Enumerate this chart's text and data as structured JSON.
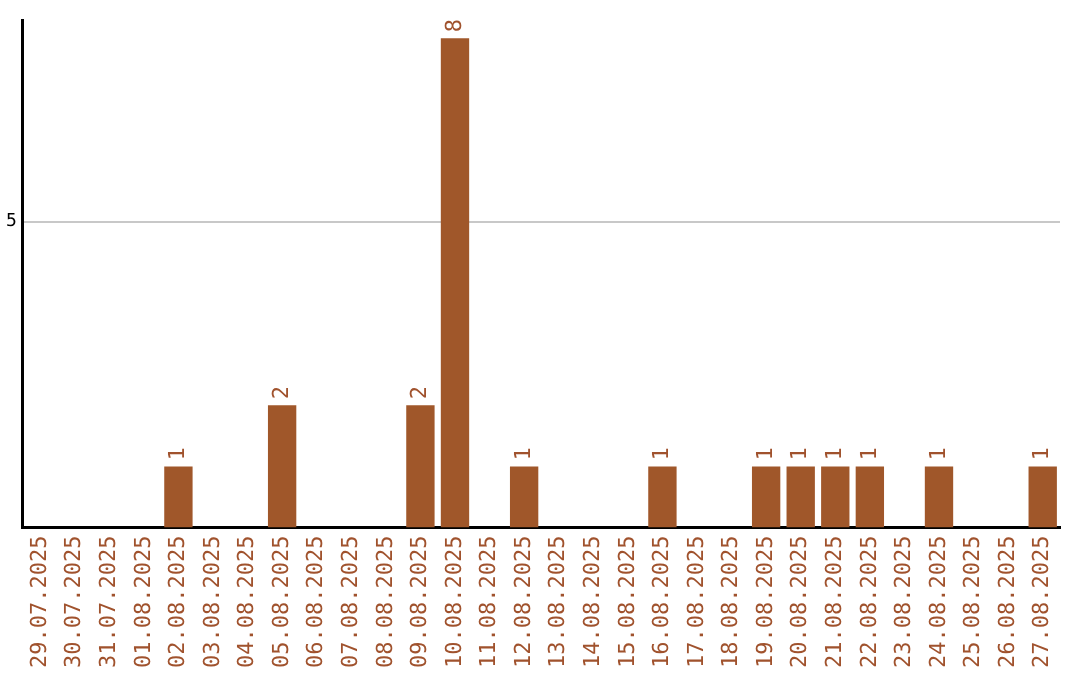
{
  "chart_data": {
    "type": "bar",
    "categories": [
      "29.07.2025",
      "30.07.2025",
      "31.07.2025",
      "01.08.2025",
      "02.08.2025",
      "03.08.2025",
      "04.08.2025",
      "05.08.2025",
      "06.08.2025",
      "07.08.2025",
      "08.08.2025",
      "09.08.2025",
      "10.08.2025",
      "11.08.2025",
      "12.08.2025",
      "13.08.2025",
      "14.08.2025",
      "15.08.2025",
      "16.08.2025",
      "17.08.2025",
      "18.08.2025",
      "19.08.2025",
      "20.08.2025",
      "21.08.2025",
      "22.08.2025",
      "23.08.2025",
      "24.08.2025",
      "25.08.2025",
      "26.08.2025",
      "27.08.2025"
    ],
    "values": [
      0,
      0,
      0,
      0,
      1,
      0,
      0,
      2,
      0,
      0,
      0,
      2,
      8,
      0,
      1,
      0,
      0,
      0,
      1,
      0,
      0,
      1,
      1,
      1,
      1,
      0,
      1,
      0,
      0,
      1
    ],
    "value_labels": [
      null,
      null,
      null,
      null,
      "1",
      null,
      null,
      "2",
      null,
      null,
      null,
      "2",
      "8",
      null,
      "1",
      null,
      null,
      null,
      "1",
      null,
      null,
      "1",
      "1",
      "1",
      "1",
      null,
      "1",
      null,
      null,
      "1"
    ],
    "color": "#a0572a",
    "ylim": [
      0,
      8.3
    ],
    "yticks": [
      5
    ],
    "grid": "y",
    "legend": false
  }
}
